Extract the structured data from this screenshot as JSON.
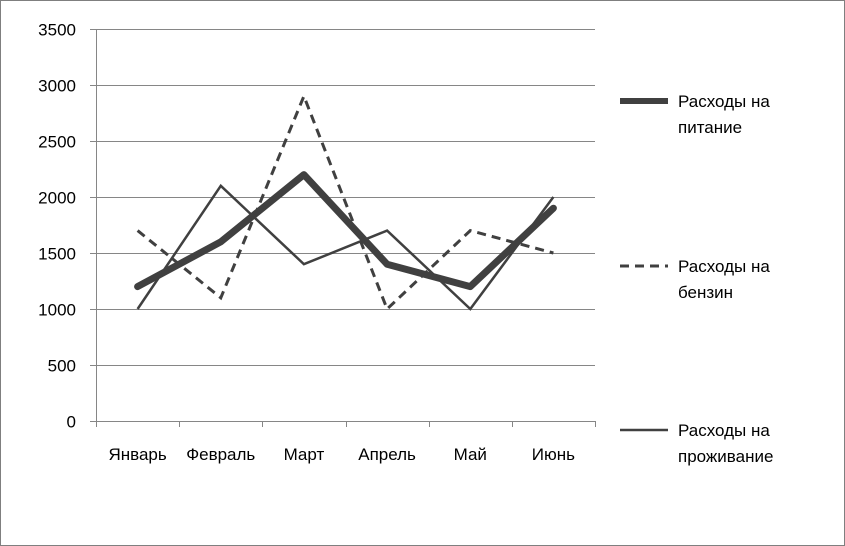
{
  "chart_data": {
    "type": "line",
    "categories": [
      "Январь",
      "Февраль",
      "Март",
      "Апрель",
      "Май",
      "Июнь"
    ],
    "ylim": [
      0,
      3500
    ],
    "yticks": [
      0,
      500,
      1000,
      1500,
      2000,
      2500,
      3000,
      3500
    ],
    "grid": true,
    "legend_position": "right",
    "series": [
      {
        "name": "Расходы на питание",
        "name_lines": [
          "Расходы на",
          "питание"
        ],
        "values": [
          1200,
          1600,
          2200,
          1400,
          1200,
          1900
        ],
        "style": "thick",
        "color": "#404040"
      },
      {
        "name": "Расходы на бензин",
        "name_lines": [
          "Расходы на",
          "бензин"
        ],
        "values": [
          1700,
          1100,
          2900,
          1000,
          1700,
          1500
        ],
        "style": "dashed",
        "color": "#404040"
      },
      {
        "name": "Расходы на проживание",
        "name_lines": [
          "Расходы на",
          "проживание"
        ],
        "values": [
          1000,
          2100,
          1400,
          1700,
          1000,
          2000
        ],
        "style": "thin",
        "color": "#404040"
      }
    ]
  }
}
